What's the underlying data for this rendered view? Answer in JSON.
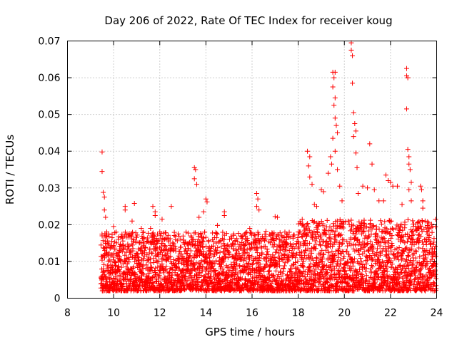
{
  "chart_data": {
    "type": "scatter",
    "title": "Day 206 of 2022, Rate Of TEC Index for receiver koug",
    "xlabel": "GPS time / hours",
    "ylabel": "ROTI / TECUs",
    "xlim": [
      8,
      24
    ],
    "ylim": [
      0,
      0.07
    ],
    "x_ticks": [
      8,
      10,
      12,
      14,
      16,
      18,
      20,
      22,
      24
    ],
    "y_ticks": [
      0,
      0.01,
      0.02,
      0.03,
      0.04,
      0.05,
      0.06,
      0.07
    ],
    "x_tick_labels": [
      "8",
      "10",
      "12",
      "14",
      "16",
      "18",
      "20",
      "22",
      "24"
    ],
    "y_tick_labels": [
      "0",
      "0.01",
      "0.02",
      "0.03",
      "0.04",
      "0.05",
      "0.06",
      "0.07"
    ],
    "grid": true,
    "marker": "+",
    "color": "#ff0000",
    "series": [
      {
        "name": "ROTI",
        "points": [
          [
            9.5,
            0.0398
          ],
          [
            9.5,
            0.0345
          ],
          [
            9.55,
            0.0288
          ],
          [
            9.6,
            0.0275
          ],
          [
            9.6,
            0.024
          ],
          [
            9.65,
            0.022
          ],
          [
            9.7,
            0.018
          ],
          [
            9.75,
            0.015
          ],
          [
            10.0,
            0.0195
          ],
          [
            10.05,
            0.0178
          ],
          [
            10.2,
            0.016
          ],
          [
            10.5,
            0.025
          ],
          [
            10.5,
            0.024
          ],
          [
            10.9,
            0.0258
          ],
          [
            10.8,
            0.021
          ],
          [
            11.2,
            0.019
          ],
          [
            11.7,
            0.025
          ],
          [
            11.8,
            0.0235
          ],
          [
            11.8,
            0.0225
          ],
          [
            11.6,
            0.019
          ],
          [
            12.1,
            0.0215
          ],
          [
            12.0,
            0.018
          ],
          [
            12.5,
            0.025
          ],
          [
            12.8,
            0.0175
          ],
          [
            13.5,
            0.0355
          ],
          [
            13.55,
            0.035
          ],
          [
            13.5,
            0.0325
          ],
          [
            13.6,
            0.031
          ],
          [
            13.7,
            0.022
          ],
          [
            13.9,
            0.0235
          ],
          [
            14.0,
            0.027
          ],
          [
            14.05,
            0.0262
          ],
          [
            14.5,
            0.0198
          ],
          [
            14.8,
            0.0235
          ],
          [
            14.8,
            0.0225
          ],
          [
            15.2,
            0.0175
          ],
          [
            15.6,
            0.017
          ],
          [
            15.9,
            0.019
          ],
          [
            16.2,
            0.0285
          ],
          [
            16.25,
            0.027
          ],
          [
            16.2,
            0.025
          ],
          [
            16.3,
            0.024
          ],
          [
            16.6,
            0.0182
          ],
          [
            16.8,
            0.017
          ],
          [
            17.0,
            0.0222
          ],
          [
            17.1,
            0.022
          ],
          [
            17.5,
            0.0175
          ],
          [
            17.8,
            0.0172
          ],
          [
            18.0,
            0.018
          ],
          [
            18.4,
            0.04
          ],
          [
            18.5,
            0.0385
          ],
          [
            18.45,
            0.036
          ],
          [
            18.5,
            0.033
          ],
          [
            18.6,
            0.031
          ],
          [
            18.7,
            0.0255
          ],
          [
            18.8,
            0.025
          ],
          [
            19.0,
            0.0295
          ],
          [
            19.1,
            0.029
          ],
          [
            19.3,
            0.034
          ],
          [
            19.4,
            0.0385
          ],
          [
            19.45,
            0.0365
          ],
          [
            19.5,
            0.0615
          ],
          [
            19.6,
            0.0615
          ],
          [
            19.55,
            0.06
          ],
          [
            19.5,
            0.0575
          ],
          [
            19.6,
            0.0545
          ],
          [
            19.55,
            0.0525
          ],
          [
            19.6,
            0.049
          ],
          [
            19.65,
            0.047
          ],
          [
            19.7,
            0.045
          ],
          [
            19.5,
            0.0435
          ],
          [
            19.6,
            0.04
          ],
          [
            19.7,
            0.035
          ],
          [
            19.8,
            0.0305
          ],
          [
            19.9,
            0.0265
          ],
          [
            20.3,
            0.0695
          ],
          [
            20.3,
            0.0675
          ],
          [
            20.35,
            0.066
          ],
          [
            20.35,
            0.0585
          ],
          [
            20.4,
            0.0505
          ],
          [
            20.45,
            0.0475
          ],
          [
            20.5,
            0.0455
          ],
          [
            20.4,
            0.044
          ],
          [
            20.5,
            0.0395
          ],
          [
            20.55,
            0.0355
          ],
          [
            20.6,
            0.0285
          ],
          [
            20.8,
            0.0305
          ],
          [
            21.0,
            0.03
          ],
          [
            21.1,
            0.042
          ],
          [
            21.2,
            0.0365
          ],
          [
            21.3,
            0.0295
          ],
          [
            21.5,
            0.0265
          ],
          [
            21.7,
            0.0265
          ],
          [
            21.8,
            0.0335
          ],
          [
            21.9,
            0.032
          ],
          [
            22.0,
            0.0315
          ],
          [
            22.1,
            0.0305
          ],
          [
            22.3,
            0.0305
          ],
          [
            22.5,
            0.0255
          ],
          [
            22.7,
            0.0625
          ],
          [
            22.7,
            0.0605
          ],
          [
            22.75,
            0.06
          ],
          [
            22.7,
            0.0515
          ],
          [
            22.75,
            0.0405
          ],
          [
            22.8,
            0.0385
          ],
          [
            22.8,
            0.0365
          ],
          [
            22.85,
            0.035
          ],
          [
            22.9,
            0.0315
          ],
          [
            22.8,
            0.0295
          ],
          [
            22.9,
            0.0265
          ],
          [
            23.3,
            0.0305
          ],
          [
            23.35,
            0.0295
          ],
          [
            23.4,
            0.0265
          ],
          [
            23.4,
            0.0245
          ],
          [
            23.5,
            0.021
          ],
          [
            23.9,
            0.0125
          ]
        ],
        "bulk_min": 0.002,
        "bulk_max": 0.018
      }
    ]
  }
}
